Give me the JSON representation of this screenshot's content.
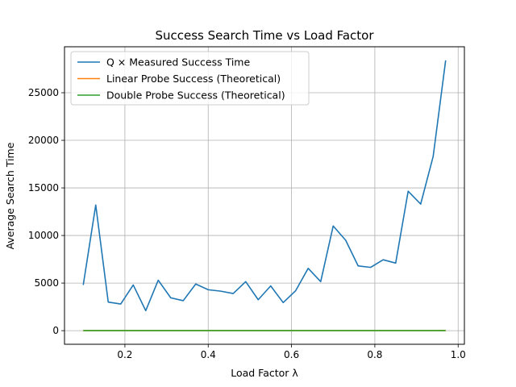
{
  "chart_data": {
    "type": "line",
    "title": "Success Search Time vs Load Factor",
    "xlabel": "Load Factor λ",
    "ylabel": "Average Search Time",
    "xlim": [
      0.055,
      1.015
    ],
    "ylim": [
      -1430,
      29830
    ],
    "xticks": [
      0.2,
      0.4,
      0.6,
      0.8,
      1.0
    ],
    "xtick_labels": [
      "0.2",
      "0.4",
      "0.6",
      "0.8",
      "1.0"
    ],
    "yticks": [
      0,
      5000,
      10000,
      15000,
      20000,
      25000
    ],
    "ytick_labels": [
      "0",
      "5000",
      "10000",
      "15000",
      "20000",
      "25000"
    ],
    "grid": true,
    "legend_position": "top-left",
    "x": [
      0.1,
      0.13,
      0.16,
      0.19,
      0.22,
      0.25,
      0.28,
      0.31,
      0.34,
      0.37,
      0.4,
      0.43,
      0.46,
      0.49,
      0.52,
      0.55,
      0.58,
      0.61,
      0.64,
      0.67,
      0.7,
      0.73,
      0.76,
      0.79,
      0.82,
      0.85,
      0.88,
      0.91,
      0.94,
      0.97
    ],
    "series": [
      {
        "name": "Q × Measured Success Time",
        "color": "#1f77b4",
        "values": [
          4800,
          13200,
          3000,
          2800,
          4800,
          2100,
          5300,
          3450,
          3150,
          4900,
          4300,
          4150,
          3900,
          5150,
          3250,
          4700,
          2950,
          4200,
          6550,
          5150,
          11000,
          9500,
          6800,
          6650,
          7450,
          7100,
          14650,
          13300,
          18300,
          28400
        ]
      },
      {
        "name": "Linear Probe Success (Theoretical)",
        "color": "#ff7f0e",
        "values": [
          1.06,
          1.07,
          1.1,
          1.12,
          1.14,
          1.17,
          1.19,
          1.22,
          1.26,
          1.29,
          1.33,
          1.38,
          1.43,
          1.48,
          1.54,
          1.61,
          1.69,
          1.78,
          1.89,
          2.02,
          2.17,
          2.35,
          2.58,
          2.88,
          3.28,
          3.83,
          4.67,
          6.06,
          8.83,
          17.17
        ]
      },
      {
        "name": "Double Probe Success (Theoretical)",
        "color": "#2ca02c",
        "values": [
          1.05,
          1.07,
          1.09,
          1.11,
          1.13,
          1.15,
          1.17,
          1.19,
          1.22,
          1.25,
          1.28,
          1.31,
          1.34,
          1.37,
          1.41,
          1.45,
          1.5,
          1.55,
          1.6,
          1.65,
          1.72,
          1.8,
          1.89,
          1.98,
          2.09,
          2.23,
          2.41,
          2.65,
          2.98,
          3.61
        ]
      }
    ]
  }
}
